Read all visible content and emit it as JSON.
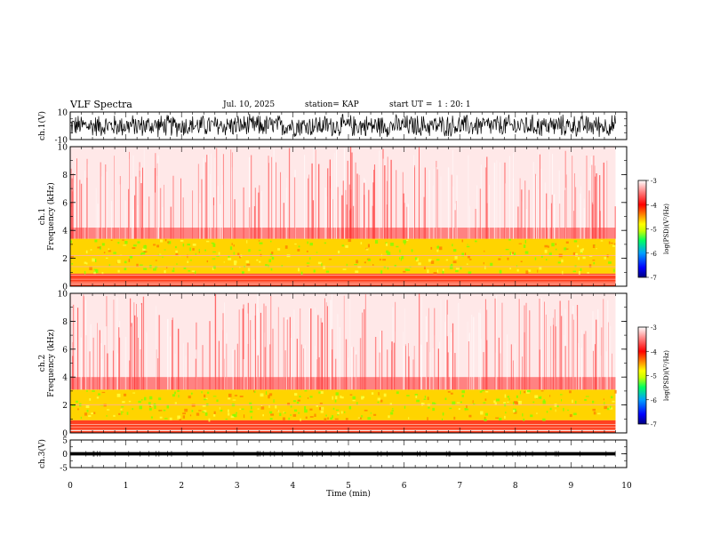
{
  "header": {
    "title": "VLF Spectra",
    "date": "Jul. 10, 2025",
    "station": "station= KAP",
    "start": "start UT =  1 : 20: 1"
  },
  "chart_data": [
    {
      "type": "line",
      "name": "ch1-waveform",
      "ylabel": "ch.1(V)",
      "ylim": [
        -10,
        10
      ],
      "y_tick_labels": [
        "10",
        "-10"
      ],
      "xlim": [
        0,
        10
      ],
      "data_end_min": 9.8,
      "description_values": {
        "typical_min": -5,
        "typical_max": 5
      }
    },
    {
      "type": "heatmap",
      "name": "ch1-spectrogram",
      "ylabel": "ch.1\nFrequency (kHz)",
      "ylim": [
        0,
        10
      ],
      "y_tick_labels": [
        "0",
        "2",
        "4",
        "6",
        "8",
        "10"
      ],
      "xlim": [
        0,
        10
      ],
      "data_end_min": 9.8,
      "band_top_khz": 3.4,
      "noise_top_khz": 4.2,
      "lines_khz": [
        2.2,
        1.4,
        0.8,
        0.5,
        0.3
      ]
    },
    {
      "type": "heatmap",
      "name": "ch2-spectrogram",
      "ylabel": "ch.2\nFrequency (kHz)",
      "ylim": [
        0,
        10
      ],
      "y_tick_labels": [
        "0",
        "2",
        "4",
        "6",
        "8",
        "10"
      ],
      "xlim": [
        0,
        10
      ],
      "data_end_min": 9.8,
      "band_top_khz": 3.1,
      "noise_top_khz": 4.0,
      "lines_khz": [
        2.0,
        0.6,
        0.4,
        0.2
      ]
    },
    {
      "type": "line",
      "name": "ch3-waveform",
      "ylabel": "ch.3(V)",
      "ylim": [
        -5,
        5
      ],
      "y_tick_labels": [
        "5",
        "0",
        "-5"
      ],
      "xlim": [
        0,
        10
      ],
      "data_end_min": 9.8,
      "description_values": {
        "typical_min": -0.6,
        "typical_max": 0.6
      }
    },
    {
      "type": "colorbar",
      "name": "colorbars",
      "label": "log(PSD)(V²/Hz)",
      "range": [
        -7,
        -3
      ],
      "tick_labels": [
        "-3",
        "-4",
        "-5",
        "-6",
        "-7"
      ],
      "colors": [
        "#000080",
        "#0000ff",
        "#00a0ff",
        "#00ff60",
        "#c8ff00",
        "#ffff00",
        "#ff8000",
        "#ff0000",
        "#ff8080",
        "#ffffff"
      ]
    }
  ],
  "xaxis": {
    "label": "Time (min)",
    "tick_labels": [
      "0",
      "1",
      "2",
      "3",
      "4",
      "5",
      "6",
      "7",
      "8",
      "9",
      "10"
    ]
  }
}
